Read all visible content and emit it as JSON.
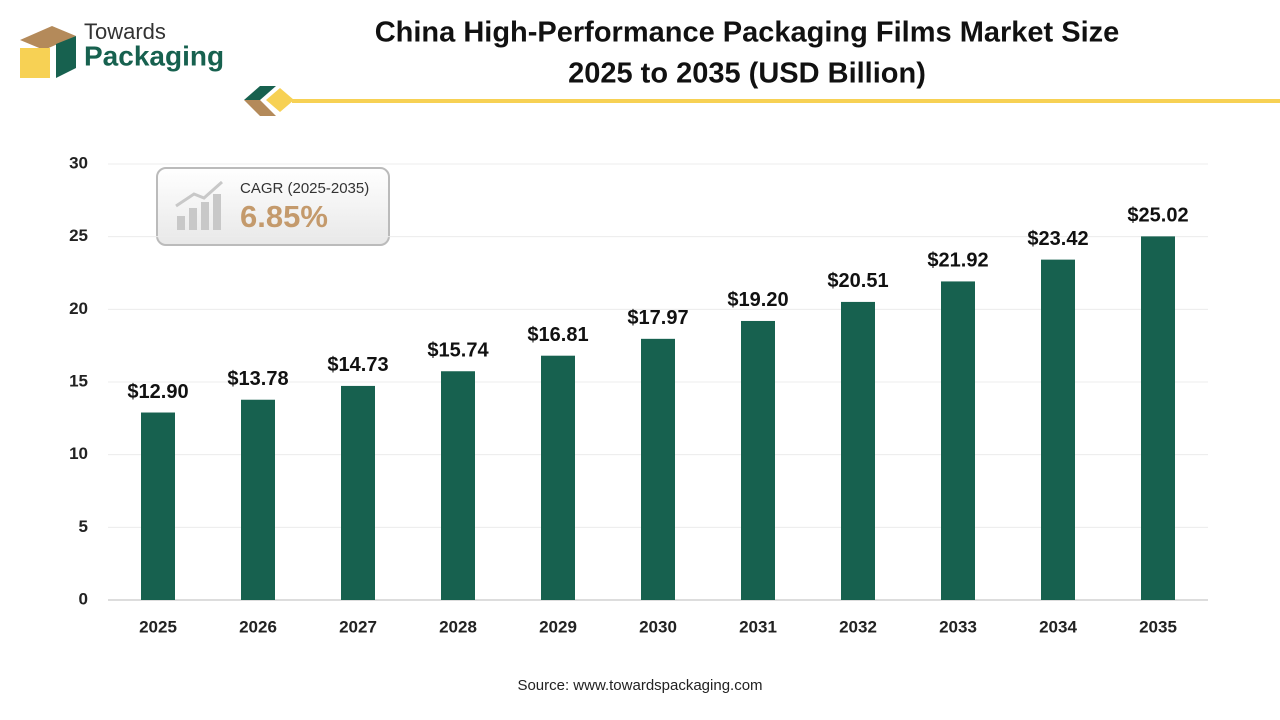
{
  "brand": {
    "line1": "Towards",
    "line2": "Packaging"
  },
  "chart_data": {
    "type": "bar",
    "title": [
      "China High-Performance Packaging Films Market Size",
      "2025 to 2035 (USD Billion)"
    ],
    "categories": [
      "2025",
      "2026",
      "2027",
      "2028",
      "2029",
      "2030",
      "2031",
      "2032",
      "2033",
      "2034",
      "2035"
    ],
    "values": [
      12.9,
      13.78,
      14.73,
      15.74,
      16.81,
      17.97,
      19.2,
      20.51,
      21.92,
      23.42,
      25.02
    ],
    "value_labels": [
      "$12.90",
      "$13.78",
      "$14.73",
      "$15.74",
      "$16.81",
      "$17.97",
      "$19.20",
      "$20.51",
      "$21.92",
      "$23.42",
      "$25.02"
    ],
    "color": "#17614f",
    "ylim": [
      0,
      30
    ],
    "yticks": [
      0,
      5,
      10,
      15,
      20,
      25,
      30
    ],
    "grid": true,
    "annotation": {
      "label": "CAGR (2025-2035)",
      "value": "6.85%"
    },
    "source": "Source: www.towardspackaging.com"
  }
}
